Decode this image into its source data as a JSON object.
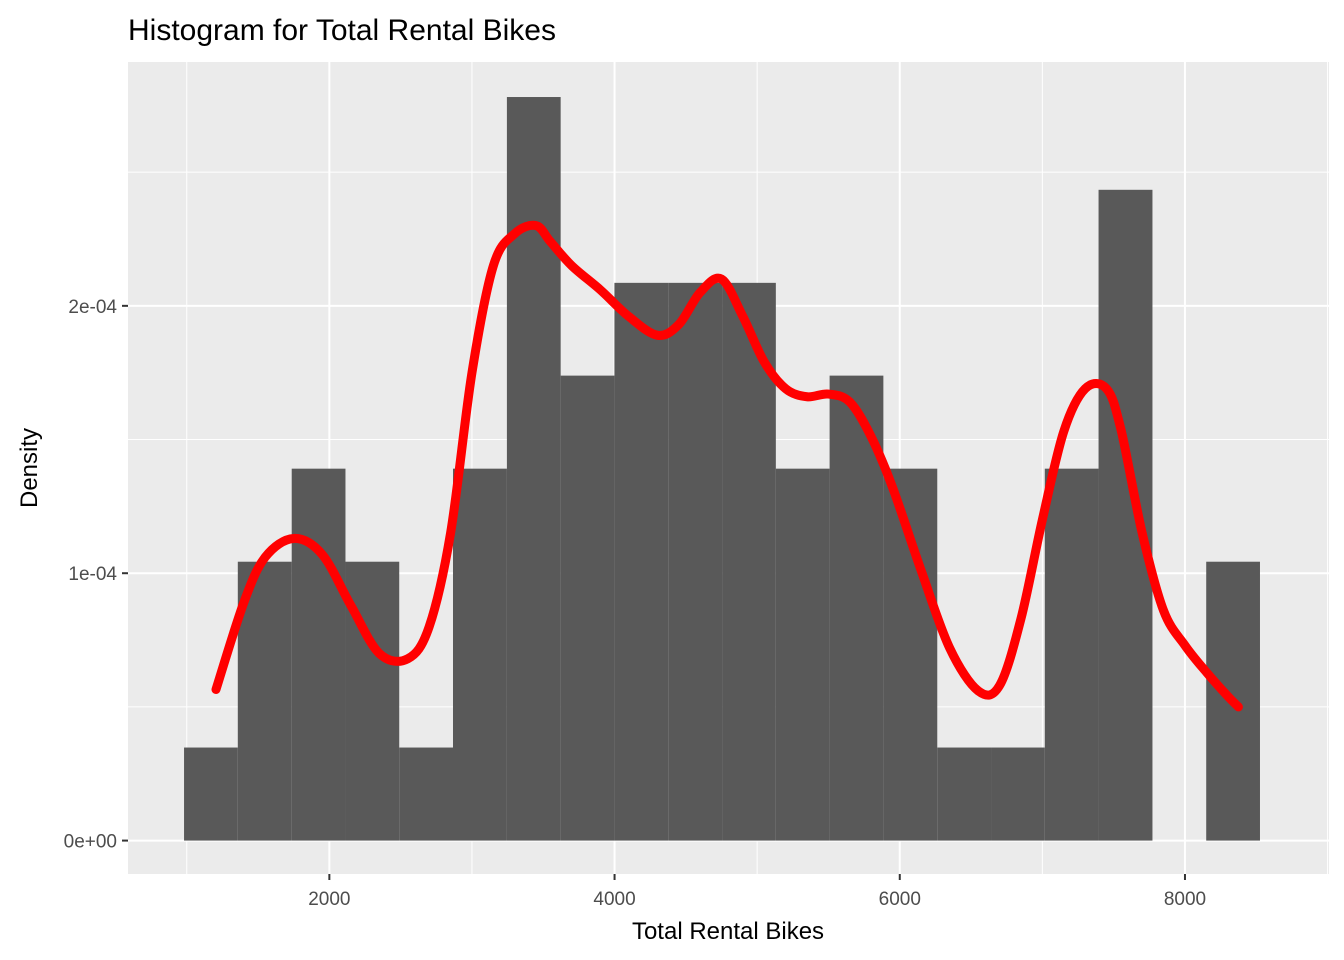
{
  "chart_data": {
    "type": "histogram",
    "title": "Histogram for Total Rental Bikes",
    "xlabel": "Total Rental Bikes",
    "ylabel": "Density",
    "xlim": [
      588,
      9010
    ],
    "ylim": [
      -1.25e-05,
      0.0002912
    ],
    "x_ticks": [
      {
        "value": 2000,
        "label": "2000"
      },
      {
        "value": 4000,
        "label": "4000"
      },
      {
        "value": 6000,
        "label": "6000"
      },
      {
        "value": 8000,
        "label": "8000"
      }
    ],
    "y_ticks": [
      {
        "value": 0,
        "label": "0e+00"
      },
      {
        "value": 0.0001,
        "label": "1e-04"
      },
      {
        "value": 0.0002,
        "label": "2e-04"
      }
    ],
    "grid": true,
    "bar_color": "#595959",
    "panel_background": "#ebebeb",
    "density_color": "#ff0000",
    "bins": [
      {
        "x0": 981,
        "x1": 1358,
        "density": 3.48e-05
      },
      {
        "x0": 1358,
        "x1": 1736,
        "density": 0.0001043
      },
      {
        "x0": 1736,
        "x1": 2113,
        "density": 0.0001391
      },
      {
        "x0": 2113,
        "x1": 2490,
        "density": 0.0001043
      },
      {
        "x0": 2490,
        "x1": 2867,
        "density": 3.48e-05
      },
      {
        "x0": 2867,
        "x1": 3245,
        "density": 0.0001391
      },
      {
        "x0": 3245,
        "x1": 3622,
        "density": 0.0002781
      },
      {
        "x0": 3622,
        "x1": 3999,
        "density": 0.0001739
      },
      {
        "x0": 3999,
        "x1": 4376,
        "density": 0.0002086
      },
      {
        "x0": 4376,
        "x1": 4754,
        "density": 0.0002086
      },
      {
        "x0": 4754,
        "x1": 5131,
        "density": 0.0002086
      },
      {
        "x0": 5131,
        "x1": 5508,
        "density": 0.0001391
      },
      {
        "x0": 5508,
        "x1": 5885,
        "density": 0.0001739
      },
      {
        "x0": 5885,
        "x1": 6263,
        "density": 0.0001391
      },
      {
        "x0": 6263,
        "x1": 6640,
        "density": 3.48e-05
      },
      {
        "x0": 6640,
        "x1": 7017,
        "density": 3.48e-05
      },
      {
        "x0": 7017,
        "x1": 7394,
        "density": 0.0001391
      },
      {
        "x0": 7394,
        "x1": 7772,
        "density": 0.0002434
      },
      {
        "x0": 7772,
        "x1": 8149,
        "density": 0
      },
      {
        "x0": 8149,
        "x1": 8526,
        "density": 0.0001043
      }
    ],
    "density_curve": {
      "x": [
        1205,
        1400,
        1550,
        1750,
        1950,
        2150,
        2350,
        2550,
        2700,
        2850,
        3000,
        3150,
        3300,
        3450,
        3550,
        3700,
        3900,
        4100,
        4300,
        4450,
        4600,
        4750,
        4900,
        5050,
        5200,
        5350,
        5500,
        5650,
        5800,
        5950,
        6150,
        6350,
        6550,
        6700,
        6850,
        7000,
        7150,
        7300,
        7450,
        7550,
        7700,
        7850,
        8000,
        8150,
        8300,
        8375
      ],
      "y": [
        5.65e-05,
        8.9e-05,
        0.000106,
        0.000113,
        0.000107,
        8.8e-05,
        7e-05,
        6.8e-05,
        8e-05,
        0.000115,
        0.000175,
        0.000215,
        0.000227,
        0.00023,
        0.000224,
        0.000215,
        0.000206,
        0.000196,
        0.000189,
        0.000193,
        0.000205,
        0.00021,
        0.000196,
        0.000179,
        0.000169,
        0.000166,
        0.000167,
        0.000164,
        0.000151,
        0.000132,
        0.000101,
        7.2e-05,
        5.6e-05,
        5.8e-05,
        8.3e-05,
        0.00012,
        0.000153,
        0.000169,
        0.000169,
        0.000154,
        0.000115,
        8.6e-05,
        7.3e-05,
        6.3e-05,
        5.4e-05,
        5e-05
      ]
    }
  }
}
